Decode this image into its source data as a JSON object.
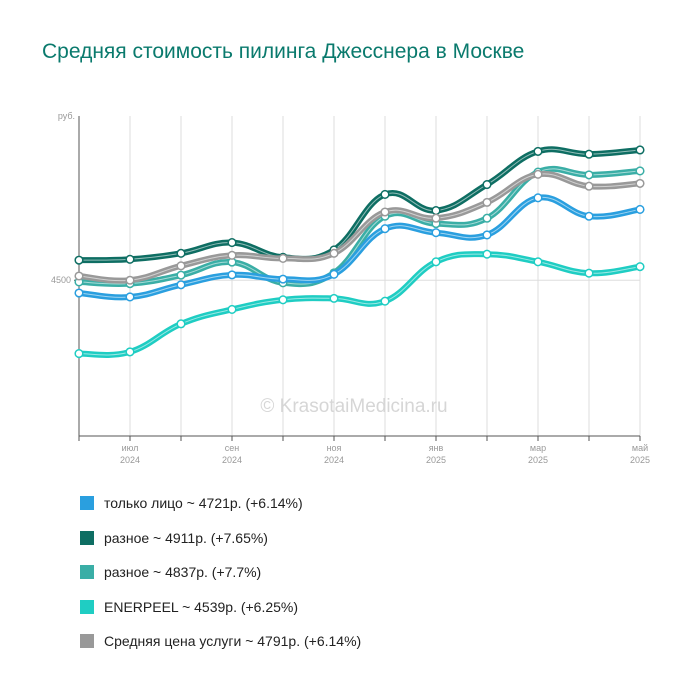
{
  "title": "Средняя стоимость пилинга Джесснера в Москве",
  "watermark": "© KrasotaiMedicina.ru",
  "chart_data": {
    "type": "line",
    "y_unit_label": "руб.",
    "y_tick_labels": [
      {
        "value": 4500,
        "label": "4500"
      }
    ],
    "ylim": [
      3950,
      5080
    ],
    "x": [
      "2024-06",
      "2024-07",
      "2024-08",
      "2024-09",
      "2024-10",
      "2024-11",
      "2024-12",
      "2025-01",
      "2025-02",
      "2025-03",
      "2025-04",
      "2025-05"
    ],
    "x_tick_labels": [
      {
        "index": 1,
        "month": "июл",
        "year": "2024"
      },
      {
        "index": 3,
        "month": "сен",
        "year": "2024"
      },
      {
        "index": 5,
        "month": "ноя",
        "year": "2024"
      },
      {
        "index": 7,
        "month": "янв",
        "year": "2025"
      },
      {
        "index": 9,
        "month": "мар",
        "year": "2025"
      },
      {
        "index": 11,
        "month": "май",
        "year": "2025"
      }
    ],
    "grid": true,
    "legend_position": "bottom",
    "series": [
      {
        "name": "разное",
        "label": "разное ~ 4911р. (+7.65%)",
        "color": "#0e6e63",
        "values": [
          4571,
          4574,
          4595,
          4633,
          4581,
          4607,
          4803,
          4746,
          4838,
          4955,
          4945,
          4960
        ]
      },
      {
        "name": "разное",
        "label": "разное ~ 4837р. (+7.7%)",
        "color": "#3aaea6",
        "values": [
          4494,
          4488,
          4518,
          4564,
          4491,
          4526,
          4726,
          4700,
          4719,
          4882,
          4872,
          4886
        ]
      },
      {
        "name": "Средняя цена услуги",
        "label": "Средняя цена услуги ~ 4791р. (+6.14%)",
        "color": "#999999",
        "values": [
          4515,
          4500,
          4551,
          4588,
          4577,
          4595,
          4741,
          4719,
          4775,
          4874,
          4832,
          4842
        ]
      },
      {
        "name": "только лицо",
        "label": "только лицо ~ 4721р. (+6.14%)",
        "color": "#2a9fdf",
        "values": [
          4455,
          4441,
          4484,
          4519,
          4504,
          4521,
          4682,
          4668,
          4660,
          4791,
          4726,
          4750
        ]
      },
      {
        "name": "ENERPEEL",
        "label": "ENERPEEL ~ 4539р. (+6.25%)",
        "color": "#1fcdc3",
        "values": [
          4241,
          4247,
          4346,
          4397,
          4431,
          4436,
          4426,
          4565,
          4592,
          4565,
          4525,
          4548
        ]
      }
    ]
  },
  "legend": [
    {
      "label": "только лицо ~ 4721р. (+6.14%)",
      "color": "#2a9fdf"
    },
    {
      "label": "разное ~ 4911р. (+7.65%)",
      "color": "#0e6e63"
    },
    {
      "label": "разное ~ 4837р. (+7.7%)",
      "color": "#3aaea6"
    },
    {
      "label": "ENERPEEL ~ 4539р. (+6.25%)",
      "color": "#1fcdc3"
    },
    {
      "label": "Средняя цена услуги ~ 4791р. (+6.14%)",
      "color": "#999999"
    }
  ]
}
